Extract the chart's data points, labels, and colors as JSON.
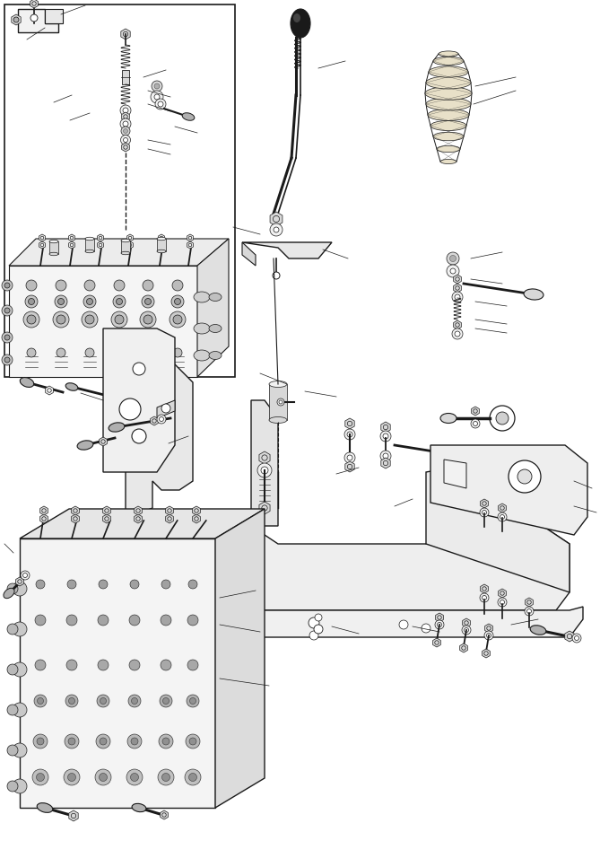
{
  "bg_color": "#ffffff",
  "line_color": "#1a1a1a",
  "fig_width": 6.69,
  "fig_height": 9.56,
  "dpi": 100,
  "lw_main": 1.0,
  "lw_thin": 0.5,
  "lw_thick": 1.5,
  "gray_light": "#f2f2f2",
  "gray_mid": "#d8d8d8",
  "gray_dark": "#b0b0b0",
  "gray_valve": "#c8c8c8",
  "black_part": "#222222"
}
